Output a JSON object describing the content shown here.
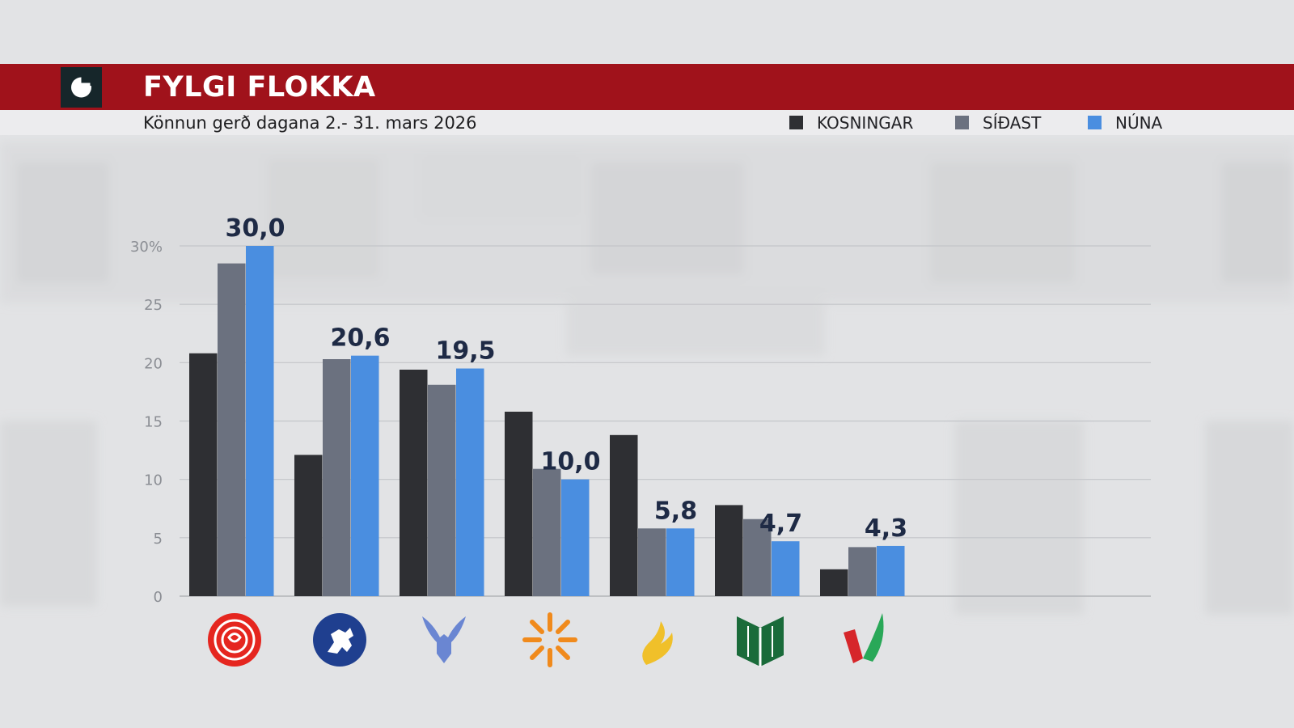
{
  "header": {
    "title": "FYLGI FLOKKA",
    "subtitle": "Könnun gerð dagana 2.- 31. mars 2026"
  },
  "legend": [
    {
      "label": "KOSNINGAR",
      "color": "#2e2f33"
    },
    {
      "label": "SÍÐAST",
      "color": "#6b717f"
    },
    {
      "label": "NÚNA",
      "color": "#4a8ee0"
    }
  ],
  "icons": [
    "rose-icon",
    "horse-icon",
    "falcon-icon",
    "sunburst-icon",
    "flame-icon",
    "book-icon",
    "v-check-icon"
  ],
  "chart_data": {
    "type": "bar",
    "categories": [
      "",
      "",
      "",
      "",
      "",
      "",
      ""
    ],
    "series": [
      {
        "name": "KOSNINGAR",
        "values": [
          20.8,
          12.1,
          19.4,
          15.8,
          13.8,
          7.8,
          2.3
        ]
      },
      {
        "name": "SÍÐAST",
        "values": [
          28.5,
          20.3,
          18.1,
          10.9,
          5.8,
          6.6,
          4.2
        ]
      },
      {
        "name": "NÚNA",
        "values": [
          30.0,
          20.6,
          19.5,
          10.0,
          5.8,
          4.7,
          4.3
        ]
      }
    ],
    "data_labels": [
      "30,0",
      "20,6",
      "19,5",
      "10,0",
      "5,8",
      "4,7",
      "4,3"
    ],
    "y_ticks": [
      "0",
      "5",
      "10",
      "15",
      "20",
      "25",
      "30%"
    ],
    "ylim": [
      0,
      30
    ],
    "colors": [
      "#2e2f33",
      "#6b717f",
      "#4a8ee0"
    ],
    "grid": true,
    "legend_position": "top-right",
    "title": "FYLGI FLOKKA",
    "xlabel": "",
    "ylabel": ""
  }
}
